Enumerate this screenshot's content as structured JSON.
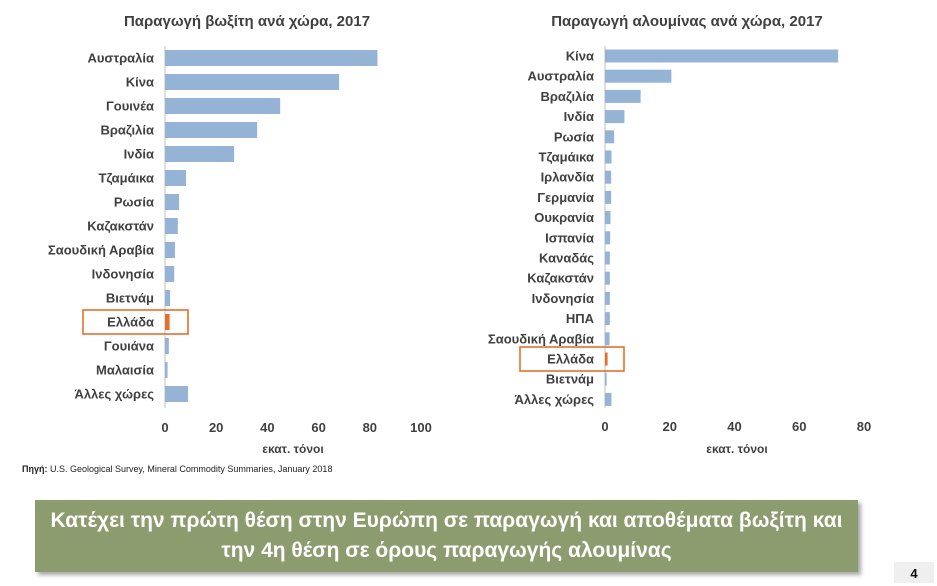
{
  "chart_data": [
    {
      "type": "bar",
      "orientation": "horizontal",
      "title": "Παραγωγή βωξίτη ανά χώρα, 2017",
      "xlabel": "εκατ. τόνοι",
      "ylabel": "",
      "xlim": [
        0,
        100
      ],
      "ticks": [
        0,
        20,
        40,
        60,
        80,
        100
      ],
      "categories": [
        "Αυστραλία",
        "Κίνα",
        "Γουινέα",
        "Βραζιλία",
        "Ινδία",
        "Τζαμάικα",
        "Ρωσία",
        "Καζακστάν",
        "Σαουδική Αραβία",
        "Ινδονησία",
        "Βιετνάμ",
        "Ελλάδα",
        "Γουιάνα",
        "Μαλαισία",
        "Άλλες χώρες"
      ],
      "values": [
        83,
        68,
        45,
        36,
        27,
        8.2,
        5.5,
        5,
        3.9,
        3.6,
        2,
        1.8,
        1.5,
        1,
        9
      ],
      "highlight": "Ελλάδα",
      "bar_color": "#94b3d5",
      "highlight_color": "#e2712d"
    },
    {
      "type": "bar",
      "orientation": "horizontal",
      "title": "Παραγωγή αλουμίνας ανά χώρα, 2017",
      "xlabel": "εκατ. τόνοι",
      "ylabel": "",
      "xlim": [
        0,
        80
      ],
      "ticks": [
        0,
        20,
        40,
        60,
        80
      ],
      "categories": [
        "Κίνα",
        "Αυστραλία",
        "Βραζιλία",
        "Ινδία",
        "Ρωσία",
        "Τζαμάικα",
        "Ιρλανδία",
        "Γερμανία",
        "Ουκρανία",
        "Ισπανία",
        "Καναδάς",
        "Καζακστάν",
        "Ινδονησία",
        "ΗΠΑ",
        "Σαουδική Αραβία",
        "Ελλάδα",
        "Βιετνάμ",
        "Άλλες χώρες"
      ],
      "values": [
        72,
        20.5,
        11,
        6,
        2.8,
        2,
        1.9,
        1.9,
        1.7,
        1.6,
        1.5,
        1.5,
        1.5,
        1.5,
        1.4,
        0.8,
        0.5,
        2
      ],
      "highlight": "Ελλάδα",
      "bar_color": "#94b3d5",
      "highlight_color": "#e2712d"
    }
  ],
  "source": {
    "label": "Πηγή:",
    "text": " U.S. Geological Survey, Mineral Commodity Summaries, January 2018"
  },
  "banner": {
    "line1": "Κατέχει την πρώτη θέση στην Ευρώπη σε παραγωγή και αποθέματα βωξίτη και",
    "line2": "την 4η θέση σε όρους παραγωγής αλουμίνας"
  },
  "page_number": "4"
}
